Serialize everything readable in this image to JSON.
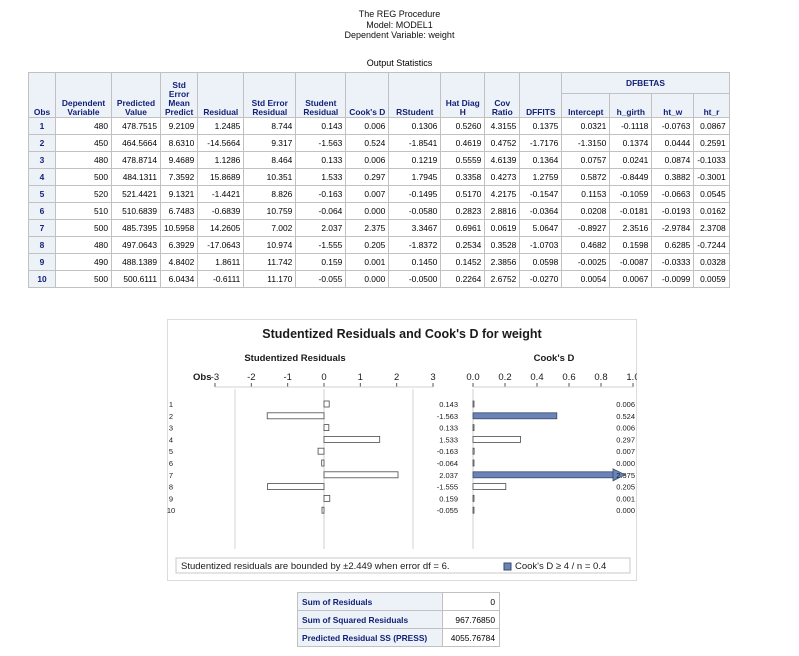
{
  "procedure": {
    "line1": "The REG Procedure",
    "line2": "Model: MODEL1",
    "line3": "Dependent Variable: weight"
  },
  "output_title": "Output Statistics",
  "table": {
    "headers": {
      "obs": "Obs",
      "dep_a": "Dependent",
      "dep_b": "Variable",
      "pred_a": "Predicted",
      "pred_b": "Value",
      "se_a": "Std",
      "se_b": "Error",
      "se_c": "Mean",
      "se_d": "Predict",
      "resid": "Residual",
      "seres_a": "Std Error",
      "seres_b": "Residual",
      "stud_a": "Student",
      "stud_b": "Residual",
      "cooks": "Cook's D",
      "rstud": "RStudent",
      "hat_a": "Hat Diag",
      "hat_b": "H",
      "cov_a": "Cov",
      "cov_b": "Ratio",
      "dffits": "DFFITS",
      "dfbetas": "DFBETAS",
      "intercept": "Intercept",
      "h_girth": "h_girth",
      "ht_w": "ht_w",
      "ht_r": "ht_r"
    },
    "rows": [
      [
        "1",
        "480",
        "478.7515",
        "9.2109",
        "1.2485",
        "8.744",
        "0.143",
        "0.006",
        "0.1306",
        "0.5260",
        "4.3155",
        "0.1375",
        "0.0321",
        "-0.1118",
        "-0.0763",
        "0.0867"
      ],
      [
        "2",
        "450",
        "464.5664",
        "8.6310",
        "-14.5664",
        "9.317",
        "-1.563",
        "0.524",
        "-1.8541",
        "0.4619",
        "0.4752",
        "-1.7176",
        "-1.3150",
        "0.1374",
        "0.0444",
        "0.2591"
      ],
      [
        "3",
        "480",
        "478.8714",
        "9.4689",
        "1.1286",
        "8.464",
        "0.133",
        "0.006",
        "0.1219",
        "0.5559",
        "4.6139",
        "0.1364",
        "0.0757",
        "0.0241",
        "0.0874",
        "-0.1033"
      ],
      [
        "4",
        "500",
        "484.1311",
        "7.3592",
        "15.8689",
        "10.351",
        "1.533",
        "0.297",
        "1.7945",
        "0.3358",
        "0.4273",
        "1.2759",
        "0.5872",
        "-0.8449",
        "0.3882",
        "-0.3001"
      ],
      [
        "5",
        "520",
        "521.4421",
        "9.1321",
        "-1.4421",
        "8.826",
        "-0.163",
        "0.007",
        "-0.1495",
        "0.5170",
        "4.2175",
        "-0.1547",
        "0.1153",
        "-0.1059",
        "-0.0663",
        "0.0545"
      ],
      [
        "6",
        "510",
        "510.6839",
        "6.7483",
        "-0.6839",
        "10.759",
        "-0.064",
        "0.000",
        "-0.0580",
        "0.2823",
        "2.8816",
        "-0.0364",
        "0.0208",
        "-0.0181",
        "-0.0193",
        "0.0162"
      ],
      [
        "7",
        "500",
        "485.7395",
        "10.5958",
        "14.2605",
        "7.002",
        "2.037",
        "2.375",
        "3.3467",
        "0.6961",
        "0.0619",
        "5.0647",
        "-0.8927",
        "2.3516",
        "-2.9784",
        "2.3708"
      ],
      [
        "8",
        "480",
        "497.0643",
        "6.3929",
        "-17.0643",
        "10.974",
        "-1.555",
        "0.205",
        "-1.8372",
        "0.2534",
        "0.3528",
        "-1.0703",
        "0.4682",
        "0.1598",
        "0.6285",
        "-0.7244"
      ],
      [
        "9",
        "490",
        "488.1389",
        "4.8402",
        "1.8611",
        "11.742",
        "0.159",
        "0.001",
        "0.1450",
        "0.1452",
        "2.3856",
        "0.0598",
        "-0.0025",
        "-0.0087",
        "-0.0333",
        "0.0328"
      ],
      [
        "10",
        "500",
        "500.6111",
        "6.0434",
        "-0.6111",
        "11.170",
        "-0.055",
        "0.000",
        "-0.0500",
        "0.2264",
        "2.6752",
        "-0.0270",
        "0.0054",
        "0.0067",
        "-0.0099",
        "0.0059"
      ]
    ]
  },
  "chart_data": {
    "type": "bar",
    "title": "Studentized Residuals and Cook's D for weight",
    "obs_label": "Obs",
    "categories": [
      "1",
      "2",
      "3",
      "4",
      "5",
      "6",
      "7",
      "8",
      "9",
      "10"
    ],
    "left_panel": {
      "title": "Studentized Residuals",
      "xlim": [
        -3,
        3
      ],
      "ticks": [
        -3,
        -2,
        -1,
        0,
        1,
        2,
        3
      ],
      "bound": 2.449,
      "values": [
        0.143,
        -1.563,
        0.133,
        1.533,
        -0.163,
        -0.064,
        2.037,
        -1.555,
        0.159,
        -0.055
      ],
      "labels": [
        "0.143",
        "-1.563",
        "0.133",
        "1.533",
        "-0.163",
        "-0.064",
        "2.037",
        "-1.555",
        "0.159",
        "-0.055"
      ]
    },
    "right_panel": {
      "title": "Cook's D",
      "xlim": [
        0,
        1
      ],
      "ticks": [
        "0.0",
        "0.2",
        "0.4",
        "0.6",
        "0.8",
        "1.0"
      ],
      "values": [
        0.006,
        0.524,
        0.006,
        0.297,
        0.007,
        0.0,
        2.375,
        0.205,
        0.001,
        0.0
      ],
      "labels": [
        "0.006",
        "0.524",
        "0.006",
        "0.297",
        "0.007",
        "0.000",
        "2.375",
        "0.205",
        "0.001",
        "0.000"
      ],
      "highlight_threshold": 0.4
    },
    "footnote_left": "Studentized residuals are bounded by ±2.449 when error df = 6.",
    "footnote_right": "Cook's D ≥ 4 / n = 0.4",
    "colors": {
      "highlight": "#6a84b8",
      "plain": "#ffffff",
      "outline": "#4a4a4a",
      "title": "#1a1a1a"
    }
  },
  "press": {
    "rows": [
      {
        "label": "Sum of Residuals",
        "value": "0"
      },
      {
        "label": "Sum of Squared Residuals",
        "value": "967.76850"
      },
      {
        "label": "Predicted Residual SS (PRESS)",
        "value": "4055.76784"
      }
    ]
  }
}
